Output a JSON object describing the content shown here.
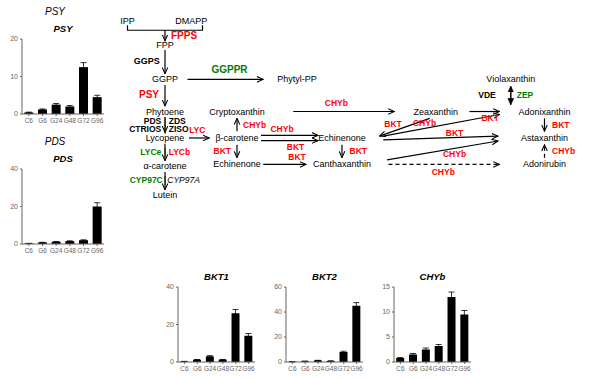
{
  "annotations": [
    {
      "text": "IPP",
      "color": "#000000"
    },
    {
      "text": "DMAPP",
      "color": "#000000"
    },
    {
      "text": "FPPS",
      "color": "#ff0000"
    },
    {
      "text": "FPP",
      "color": "#000000"
    },
    {
      "text": "GGPS",
      "color": "#000000"
    },
    {
      "text": "GGPP",
      "color": "#000000"
    },
    {
      "text": "Phytyl-PP",
      "color": "#000000"
    },
    {
      "text": "GGPPR",
      "color": "#008000"
    },
    {
      "text": "PSY",
      "color": "#ff0000"
    },
    {
      "text": "Phytoene",
      "color": "#000000"
    },
    {
      "text": "PDS",
      "color": "#000000"
    },
    {
      "text": "|",
      "color": "#000000"
    },
    {
      "text": "ZDS",
      "color": "#000000"
    },
    {
      "text": "CTRIOS",
      "color": "#000000"
    },
    {
      "text": "|",
      "color": "#000000"
    },
    {
      "text": "ZISO",
      "color": "#000000"
    },
    {
      "text": "Lycopene",
      "color": "#000000"
    },
    {
      "text": "LYC",
      "color": "#ff0000"
    },
    {
      "text": "LYCe",
      "color": "#008000"
    },
    {
      "text": "|",
      "color": "#000000"
    },
    {
      "text": "LYCb",
      "color": "#ff0000"
    },
    {
      "text": "α-carotene",
      "color": "#000000"
    },
    {
      "text": "CYP97C",
      "color": "#008000"
    },
    {
      "text": "|",
      "color": "#000000"
    },
    {
      "text": "CYP97A",
      "color": "#000000"
    },
    {
      "text": "Lutein",
      "color": "#000000"
    },
    {
      "text": "β-carotene",
      "color": "#000000"
    },
    {
      "text": "CHYb",
      "color": "#ff0000"
    },
    {
      "text": "Cryptoxanthin",
      "color": "#000000"
    },
    {
      "text": "BKT",
      "color": "#ff0000"
    },
    {
      "text": "Echinenone",
      "color": "#000000"
    },
    {
      "text": "CHYb",
      "color": "#ff0000"
    },
    {
      "text": "BKT",
      "color": "#ff0000"
    },
    {
      "text": "CHYb",
      "color": "#ff0000"
    },
    {
      "text": "BKT",
      "color": "#ff0000"
    },
    {
      "text": "Echinenone",
      "color": "#000000"
    },
    {
      "text": "BKT",
      "color": "#ff0000"
    },
    {
      "text": "Canthaxanthin",
      "color": "#000000"
    },
    {
      "text": "Zeaxanthin",
      "color": "#000000"
    },
    {
      "text": "Violaxanthin",
      "color": "#000000"
    },
    {
      "text": "VDE",
      "color": "#000000"
    },
    {
      "text": "|",
      "color": "#000000"
    },
    {
      "text": "ZEP",
      "color": "#008000"
    },
    {
      "text": "BKT",
      "color": "#ff0000"
    },
    {
      "text": "Adonixanthin",
      "color": "#000000"
    },
    {
      "text": "BKT",
      "color": "#ff0000"
    },
    {
      "text": "CHYb",
      "color": "#ff0000"
    },
    {
      "text": "BKT",
      "color": "#ff0000"
    },
    {
      "text": "Astaxanthin",
      "color": "#000000"
    },
    {
      "text": "BKT",
      "color": "#ff0000"
    },
    {
      "text": "CHYb",
      "color": "#ff0000"
    },
    {
      "text": "Adonirubin",
      "color": "#000000"
    },
    {
      "text": "CHYb",
      "color": "#ff0000"
    },
    {
      "text": "CHYb",
      "color": "#ff0000"
    },
    {
      "text": "PSY",
      "color": "#000000"
    },
    {
      "text": "PDS",
      "color": "#000000"
    }
  ],
  "chart_data": [
    {
      "type": "bar",
      "title": "PSY",
      "categories": [
        "C6",
        "G6",
        "G24",
        "G48",
        "G72",
        "G96"
      ],
      "values": [
        0.4,
        1.2,
        2.5,
        2.0,
        12.5,
        4.5
      ],
      "errors": [
        0.1,
        0.15,
        0.3,
        0.25,
        1.2,
        0.5
      ],
      "color": "#000000",
      "ylim": [
        0,
        20
      ],
      "yticks": [
        0,
        10,
        20
      ]
    },
    {
      "type": "bar",
      "title": "PDS",
      "categories": [
        "C6",
        "G6",
        "G24",
        "G48",
        "G72",
        "G96"
      ],
      "values": [
        0.3,
        0.8,
        1.2,
        1.5,
        2.0,
        20.0
      ],
      "errors": [
        0.05,
        0.1,
        0.15,
        0.2,
        0.25,
        2.0
      ],
      "color": "#000000",
      "ylim": [
        0,
        40
      ],
      "yticks": [
        0,
        20,
        40
      ]
    },
    {
      "type": "bar",
      "title": "BKT1",
      "categories": [
        "C6",
        "G6",
        "G24",
        "G48",
        "G72",
        "G96"
      ],
      "values": [
        0.3,
        1.2,
        3.0,
        1.2,
        26.0,
        14.0
      ],
      "errors": [
        0.05,
        0.15,
        0.4,
        0.15,
        2.0,
        1.2
      ],
      "color": "#000000",
      "ylim": [
        0,
        40
      ],
      "yticks": [
        0,
        20,
        40
      ]
    },
    {
      "type": "bar",
      "title": "BKT2",
      "categories": [
        "C6",
        "G6",
        "G24",
        "G48",
        "G72",
        "G96"
      ],
      "values": [
        0.2,
        0.6,
        1.2,
        0.8,
        8.0,
        45.0
      ],
      "errors": [
        0.03,
        0.08,
        0.15,
        0.1,
        0.6,
        2.5
      ],
      "color": "#000000",
      "ylim": [
        0,
        60
      ],
      "yticks": [
        0,
        20,
        40,
        60
      ]
    },
    {
      "type": "bar",
      "title": "CHYb",
      "categories": [
        "C6",
        "G6",
        "G24",
        "G48",
        "G72",
        "G96"
      ],
      "values": [
        0.8,
        1.5,
        2.5,
        3.2,
        13.0,
        9.5
      ],
      "errors": [
        0.1,
        0.2,
        0.3,
        0.3,
        1.0,
        0.8
      ],
      "color": "#000000",
      "ylim": [
        0,
        15
      ],
      "yticks": [
        0,
        5,
        10,
        15
      ]
    }
  ]
}
